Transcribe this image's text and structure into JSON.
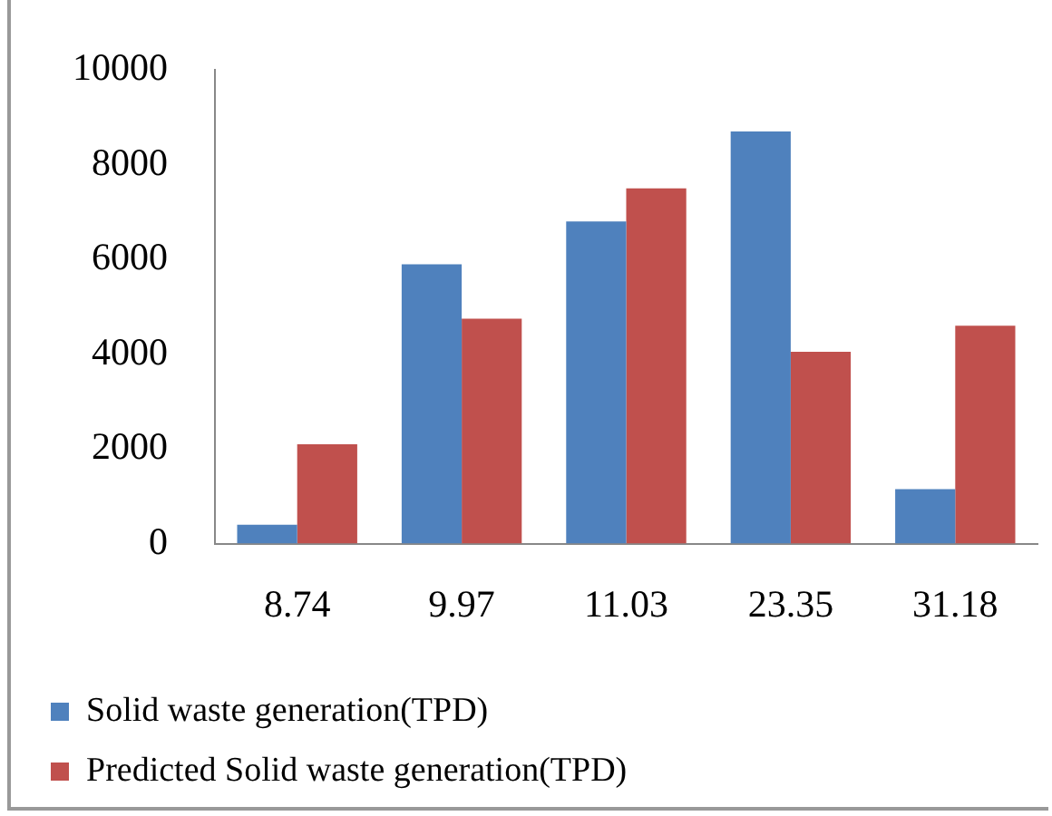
{
  "chart_data": {
    "type": "bar",
    "categories": [
      "8.74",
      "9.97",
      "11.03",
      "23.35",
      "31.18"
    ],
    "series": [
      {
        "name": "Solid waste generation(TPD)",
        "color": "#4f81bd",
        "values": [
          400,
          5900,
          6800,
          8700,
          1150
        ]
      },
      {
        "name": "Predicted Solid waste generation(TPD)",
        "color": "#c0504d",
        "values": [
          2100,
          4750,
          7500,
          4050,
          4600
        ]
      }
    ],
    "ylim": [
      0,
      10000
    ],
    "yticks": [
      0,
      2000,
      4000,
      6000,
      8000,
      10000
    ],
    "grid": false,
    "legend": "bottom"
  }
}
